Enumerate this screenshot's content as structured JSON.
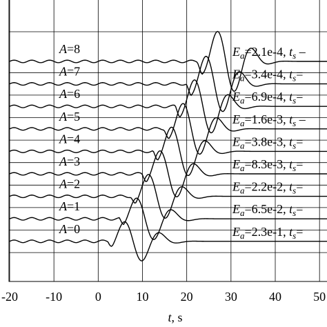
{
  "chart_data": {
    "type": "line",
    "xlabel_var": "t",
    "xlabel_unit": ", s",
    "xlim": [
      -20,
      52
    ],
    "xticks": [
      -20,
      -10,
      0,
      10,
      20,
      30,
      40,
      50
    ],
    "xtick_labels": [
      "-20",
      "-10",
      "0",
      "10",
      "20",
      "30",
      "40",
      "50"
    ],
    "grid": true,
    "series": [
      {
        "A_label": "A",
        "A_value": "=0",
        "onset": 2.2,
        "peak_t": 5.8,
        "trough_t": 10.0,
        "amp": 0.85,
        "Ea_sym": "E",
        "Ea_sub": "a",
        "Ea_text": "=2.3e-1, t",
        "ts_sub": "s",
        "ts_tail": "="
      },
      {
        "A_label": "A",
        "A_value": "=1",
        "onset": 4.8,
        "peak_t": 8.5,
        "trough_t": 12.7,
        "amp": 0.9,
        "Ea_sym": "E",
        "Ea_sub": "a",
        "Ea_text": "=6.5e-2, t",
        "ts_sub": "s",
        "ts_tail": "="
      },
      {
        "A_label": "A",
        "A_value": "=2",
        "onset": 7.4,
        "peak_t": 11.2,
        "trough_t": 15.3,
        "amp": 0.95,
        "Ea_sym": "E",
        "Ea_sub": "a",
        "Ea_text": "=2.2e-2, t",
        "ts_sub": "s",
        "ts_tail": "="
      },
      {
        "A_label": "A",
        "A_value": "=3",
        "onset": 9.9,
        "peak_t": 13.8,
        "trough_t": 17.9,
        "amp": 1.0,
        "Ea_sym": "E",
        "Ea_sub": "a",
        "Ea_text": "=8.3e-3, t",
        "ts_sub": "s",
        "ts_tail": "="
      },
      {
        "A_label": "A",
        "A_value": "=4",
        "onset": 12.4,
        "peak_t": 16.4,
        "trough_t": 20.5,
        "amp": 1.05,
        "Ea_sym": "E",
        "Ea_sub": "a",
        "Ea_text": "=3.8e-3, t",
        "ts_sub": "s",
        "ts_tail": "="
      },
      {
        "A_label": "A",
        "A_value": "=5",
        "onset": 14.9,
        "peak_t": 19.0,
        "trough_t": 23.1,
        "amp": 1.1,
        "Ea_sym": "E",
        "Ea_sub": "a",
        "Ea_text": "=1.6e-3, t",
        "ts_sub": "s",
        "ts_tail": " –"
      },
      {
        "A_label": "A",
        "A_value": "=6",
        "onset": 17.4,
        "peak_t": 21.6,
        "trough_t": 25.7,
        "amp": 1.15,
        "Ea_sym": "E",
        "Ea_sub": "a",
        "Ea_text": "=6.9e-4, t",
        "ts_sub": "s",
        "ts_tail": "="
      },
      {
        "A_label": "A",
        "A_value": "=7",
        "onset": 19.9,
        "peak_t": 24.2,
        "trough_t": 28.3,
        "amp": 1.2,
        "Ea_sym": "E",
        "Ea_sub": "a",
        "Ea_text": "=3.4e-4, t",
        "ts_sub": "s",
        "ts_tail": "="
      },
      {
        "A_label": "A",
        "A_value": "=8",
        "onset": 22.4,
        "peak_t": 26.8,
        "trough_t": 30.9,
        "amp": 1.3,
        "Ea_sym": "E",
        "Ea_sub": "a",
        "Ea_text": "=2.1e-4, t",
        "ts_sub": "s",
        "ts_tail": " –"
      }
    ]
  }
}
